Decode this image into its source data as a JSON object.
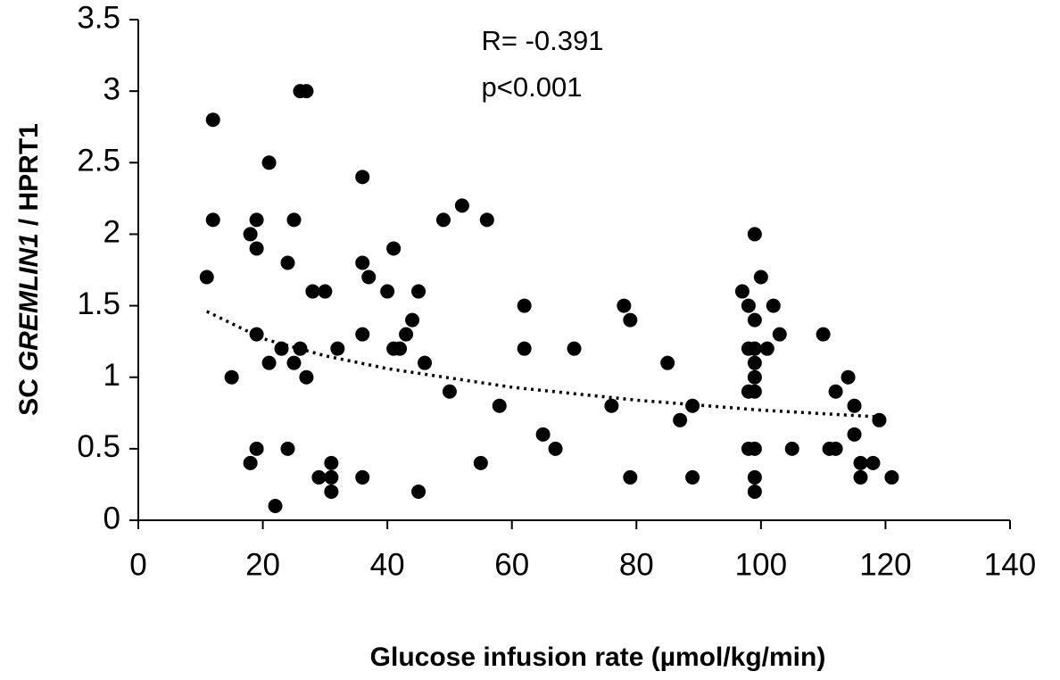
{
  "chart_data": {
    "type": "scatter",
    "annotations": [
      "R= -0.391",
      "p<0.001"
    ],
    "x_label": "Glucose infusion rate (µmol/kg/min)",
    "y_label": [
      "SC",
      "GREMLIN1",
      "/ HPRT1"
    ],
    "color": "#000000",
    "xlim": [
      0,
      140
    ],
    "xticks": [
      0,
      20,
      40,
      60,
      80,
      100,
      120,
      140
    ],
    "ylim": [
      0,
      3.5
    ],
    "yticks": [
      0,
      0.5,
      1,
      1.5,
      2,
      2.5,
      3,
      3.5
    ],
    "x": [
      11,
      12,
      12,
      15,
      18,
      19,
      19,
      19,
      21,
      21,
      18,
      19,
      22,
      23,
      24,
      24,
      25,
      25,
      26,
      26,
      27,
      27,
      28,
      29,
      30,
      31,
      31,
      31,
      32,
      36,
      36,
      36,
      36,
      37,
      40,
      41,
      41,
      42,
      43,
      44,
      45,
      45,
      46,
      49,
      50,
      52,
      55,
      56,
      58,
      62,
      62,
      65,
      67,
      70,
      76,
      78,
      79,
      79,
      85,
      87,
      89,
      89,
      97,
      98,
      98,
      98,
      98,
      99,
      99,
      99,
      99,
      99,
      99,
      99,
      99,
      99,
      100,
      101,
      102,
      103,
      105,
      110,
      111,
      112,
      112,
      114,
      115,
      115,
      116,
      116,
      118,
      119,
      121
    ],
    "values": [
      1.7,
      2.8,
      2.1,
      1.0,
      2.0,
      2.1,
      1.9,
      1.3,
      2.5,
      1.1,
      0.4,
      0.5,
      0.1,
      1.2,
      1.8,
      0.5,
      2.1,
      1.1,
      1.2,
      3.0,
      3.0,
      1.0,
      1.6,
      0.3,
      1.6,
      0.4,
      0.3,
      0.2,
      1.2,
      2.4,
      1.8,
      1.3,
      0.3,
      1.7,
      1.6,
      1.9,
      1.2,
      1.2,
      1.3,
      1.4,
      1.6,
      0.2,
      1.1,
      2.1,
      0.9,
      2.2,
      0.4,
      2.1,
      0.8,
      1.5,
      1.2,
      0.6,
      0.5,
      1.2,
      0.8,
      1.5,
      1.4,
      0.3,
      1.1,
      0.7,
      0.8,
      0.3,
      1.6,
      1.5,
      1.2,
      0.9,
      0.5,
      2.0,
      1.4,
      1.2,
      1.1,
      1.0,
      0.9,
      0.5,
      0.3,
      0.2,
      1.7,
      1.2,
      1.5,
      1.3,
      0.5,
      1.3,
      0.5,
      0.9,
      0.5,
      1.0,
      0.8,
      0.6,
      0.4,
      0.3,
      0.4,
      0.7,
      0.3
    ],
    "trendline": {
      "x": [
        11,
        20,
        30,
        40,
        60,
        80,
        100,
        120
      ],
      "values": [
        1.46,
        1.27,
        1.15,
        1.06,
        0.93,
        0.84,
        0.77,
        0.72
      ]
    }
  }
}
